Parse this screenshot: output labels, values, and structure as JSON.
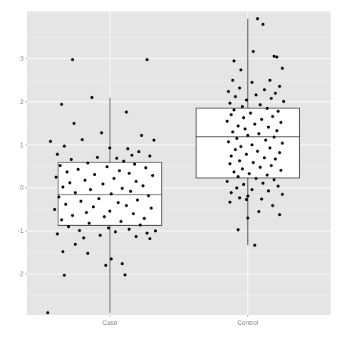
{
  "chart_data": {
    "type": "boxplot",
    "title": "",
    "xlabel": "",
    "ylabel": "",
    "categories": [
      "Case",
      "Control"
    ],
    "ylim": [
      -2.95,
      4.1
    ],
    "y_ticks": [
      -2,
      -1,
      0,
      1,
      2,
      3
    ],
    "grid": true,
    "legend": "none",
    "colors": {
      "panel": "#e5e5e5",
      "grid_major": "#ffffff",
      "grid_minor": "#f2f2f2",
      "box_fill": "#ffffff",
      "box_stroke": "#333333",
      "point": "#000000",
      "tick_label": "#7f7f7f"
    },
    "boxes": [
      {
        "category": "Case",
        "whisker_low": -2.9,
        "q1": -0.87,
        "median": -0.16,
        "q3": 0.59,
        "whisker_high": 2.1
      },
      {
        "category": "Control",
        "whisker_low": -1.33,
        "q1": 0.23,
        "median": 1.19,
        "q3": 1.85,
        "whisker_high": 3.93
      }
    ],
    "points": {
      "Case": [
        [
          0.73,
          2.98
        ],
        [
          1.27,
          2.98
        ],
        [
          0.87,
          2.1
        ],
        [
          0.65,
          1.94
        ],
        [
          1.12,
          1.76
        ],
        [
          0.74,
          1.5
        ],
        [
          0.94,
          1.28
        ],
        [
          1.23,
          1.22
        ],
        [
          0.8,
          1.12
        ],
        [
          1.32,
          1.11
        ],
        [
          0.57,
          1.08
        ],
        [
          0.67,
          0.97
        ],
        [
          1.0,
          0.93
        ],
        [
          1.13,
          0.91
        ],
        [
          1.21,
          0.84
        ],
        [
          0.62,
          0.78
        ],
        [
          1.16,
          0.76
        ],
        [
          1.29,
          0.74
        ],
        [
          0.91,
          0.71
        ],
        [
          1.05,
          0.69
        ],
        [
          0.72,
          0.66
        ],
        [
          1.1,
          0.62
        ],
        [
          0.84,
          0.58
        ],
        [
          1.18,
          0.55
        ],
        [
          0.64,
          0.52
        ],
        [
          0.98,
          0.49
        ],
        [
          1.26,
          0.47
        ],
        [
          0.77,
          0.43
        ],
        [
          1.07,
          0.4
        ],
        [
          0.69,
          0.37
        ],
        [
          1.14,
          0.34
        ],
        [
          0.89,
          0.31
        ],
        [
          1.31,
          0.29
        ],
        [
          0.61,
          0.25
        ],
        [
          1.03,
          0.22
        ],
        [
          0.82,
          0.18
        ],
        [
          1.19,
          0.15
        ],
        [
          0.71,
          0.12
        ],
        [
          0.95,
          0.09
        ],
        [
          1.24,
          0.05
        ],
        [
          0.66,
          0.02
        ],
        [
          1.09,
          -0.01
        ],
        [
          0.86,
          -0.04
        ],
        [
          1.15,
          -0.08
        ],
        [
          0.75,
          -0.11
        ],
        [
          1.01,
          -0.14
        ],
        [
          1.28,
          -0.18
        ],
        [
          0.63,
          -0.21
        ],
        [
          0.92,
          -0.25
        ],
        [
          1.2,
          -0.28
        ],
        [
          0.79,
          -0.31
        ],
        [
          1.06,
          -0.34
        ],
        [
          0.68,
          -0.38
        ],
        [
          1.12,
          -0.41
        ],
        [
          0.88,
          -0.44
        ],
        [
          1.3,
          -0.47
        ],
        [
          0.6,
          -0.5
        ],
        [
          1.0,
          -0.54
        ],
        [
          0.83,
          -0.57
        ],
        [
          1.17,
          -0.6
        ],
        [
          0.73,
          -0.64
        ],
        [
          0.96,
          -0.67
        ],
        [
          1.25,
          -0.71
        ],
        [
          0.65,
          -0.74
        ],
        [
          1.08,
          -0.78
        ],
        [
          0.85,
          -0.82
        ],
        [
          1.22,
          -0.86
        ],
        [
          0.7,
          -0.9
        ],
        [
          0.99,
          -0.93
        ],
        [
          1.14,
          -0.96
        ],
        [
          0.78,
          -0.99
        ],
        [
          1.04,
          -1.02
        ],
        [
          1.27,
          -1.05
        ],
        [
          0.62,
          -1.07
        ],
        [
          0.93,
          -1.1
        ],
        [
          1.19,
          -1.13
        ],
        [
          0.81,
          -1.16
        ],
        [
          1.29,
          -1.18
        ],
        [
          0.75,
          -1.31
        ],
        [
          0.66,
          -1.48
        ],
        [
          0.84,
          -1.52
        ],
        [
          1.01,
          -1.65
        ],
        [
          0.97,
          -1.8
        ],
        [
          1.09,
          -1.76
        ],
        [
          0.67,
          -2.03
        ],
        [
          1.11,
          -2.02
        ],
        [
          0.55,
          -2.9
        ],
        [
          1.33,
          -1.0
        ]
      ],
      "Control": [
        [
          2.07,
          3.93
        ],
        [
          2.11,
          3.8
        ],
        [
          2.19,
          3.06
        ],
        [
          2.21,
          3.04
        ],
        [
          1.9,
          2.95
        ],
        [
          2.04,
          3.17
        ],
        [
          2.25,
          2.78
        ],
        [
          1.95,
          2.74
        ],
        [
          1.89,
          2.5
        ],
        [
          2.16,
          2.5
        ],
        [
          2.03,
          2.45
        ],
        [
          2.23,
          2.36
        ],
        [
          1.94,
          2.32
        ],
        [
          2.12,
          2.28
        ],
        [
          1.86,
          2.24
        ],
        [
          2.2,
          2.2
        ],
        [
          2.06,
          2.16
        ],
        [
          1.91,
          2.12
        ],
        [
          2.17,
          2.08
        ],
        [
          1.99,
          2.04
        ],
        [
          2.26,
          2.01
        ],
        [
          1.87,
          1.97
        ],
        [
          2.09,
          1.93
        ],
        [
          1.96,
          1.89
        ],
        [
          2.14,
          1.85
        ],
        [
          1.9,
          1.81
        ],
        [
          2.22,
          1.78
        ],
        [
          2.02,
          1.74
        ],
        [
          1.88,
          1.7
        ],
        [
          2.18,
          1.66
        ],
        [
          1.97,
          1.63
        ],
        [
          2.1,
          1.59
        ],
        [
          1.85,
          1.55
        ],
        [
          2.24,
          1.52
        ],
        [
          2.05,
          1.48
        ],
        [
          1.93,
          1.44
        ],
        [
          2.15,
          1.41
        ],
        [
          1.98,
          1.37
        ],
        [
          2.21,
          1.33
        ],
        [
          1.89,
          1.3
        ],
        [
          2.08,
          1.26
        ],
        [
          2.0,
          1.22
        ],
        [
          2.19,
          1.18
        ],
        [
          1.92,
          1.15
        ],
        [
          2.13,
          1.11
        ],
        [
          1.86,
          1.07
        ],
        [
          2.25,
          1.04
        ],
        [
          2.03,
          1.0
        ],
        [
          1.95,
          0.96
        ],
        [
          2.16,
          0.93
        ],
        [
          1.91,
          0.89
        ],
        [
          2.07,
          0.85
        ],
        [
          2.23,
          0.82
        ],
        [
          1.99,
          0.78
        ],
        [
          1.88,
          0.74
        ],
        [
          2.12,
          0.7
        ],
        [
          2.2,
          0.67
        ],
        [
          1.94,
          0.63
        ],
        [
          2.04,
          0.59
        ],
        [
          1.87,
          0.56
        ],
        [
          2.17,
          0.52
        ],
        [
          2.09,
          0.48
        ],
        [
          1.96,
          0.44
        ],
        [
          2.24,
          0.41
        ],
        [
          1.9,
          0.37
        ],
        [
          2.01,
          0.33
        ],
        [
          2.14,
          0.3
        ],
        [
          1.93,
          0.26
        ],
        [
          2.06,
          0.22
        ],
        [
          2.19,
          0.19
        ],
        [
          1.85,
          0.15
        ],
        [
          2.11,
          0.11
        ],
        [
          1.97,
          0.08
        ],
        [
          2.22,
          0.04
        ],
        [
          1.92,
          0.0
        ],
        [
          2.03,
          -0.04
        ],
        [
          2.15,
          -0.07
        ],
        [
          1.88,
          -0.11
        ],
        [
          2.25,
          -0.15
        ],
        [
          2.0,
          -0.19
        ],
        [
          1.94,
          -0.23
        ],
        [
          2.1,
          -0.26
        ],
        [
          1.87,
          -0.33
        ],
        [
          2.18,
          -0.41
        ],
        [
          2.08,
          -0.55
        ],
        [
          2.23,
          -0.62
        ],
        [
          2.0,
          -0.7
        ],
        [
          1.93,
          -0.97
        ],
        [
          2.05,
          -1.33
        ],
        [
          1.99,
          -0.27
        ]
      ]
    }
  }
}
